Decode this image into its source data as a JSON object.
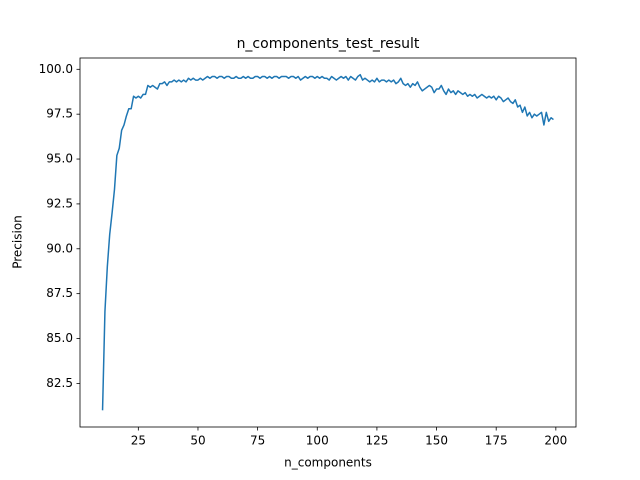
{
  "chart_data": {
    "type": "line",
    "title": "n_components_test_result",
    "x_label": "n_components",
    "y_label": "Precision",
    "x": [
      10,
      11,
      12,
      13,
      14,
      15,
      16,
      17,
      18,
      19,
      20,
      21,
      22,
      23,
      24,
      25,
      26,
      27,
      28,
      29,
      30,
      31,
      32,
      33,
      34,
      35,
      36,
      37,
      38,
      39,
      40,
      41,
      42,
      43,
      44,
      45,
      46,
      47,
      48,
      49,
      50,
      51,
      52,
      53,
      54,
      55,
      56,
      57,
      58,
      59,
      60,
      61,
      62,
      63,
      64,
      65,
      66,
      67,
      68,
      69,
      70,
      71,
      72,
      73,
      74,
      75,
      76,
      77,
      78,
      79,
      80,
      81,
      82,
      83,
      84,
      85,
      86,
      87,
      88,
      89,
      90,
      91,
      92,
      93,
      94,
      95,
      96,
      97,
      98,
      99,
      100,
      101,
      102,
      103,
      104,
      105,
      106,
      107,
      108,
      109,
      110,
      111,
      112,
      113,
      114,
      115,
      116,
      117,
      118,
      119,
      120,
      121,
      122,
      123,
      124,
      125,
      126,
      127,
      128,
      129,
      130,
      131,
      132,
      133,
      134,
      135,
      136,
      137,
      138,
      139,
      140,
      141,
      142,
      143,
      144,
      145,
      146,
      147,
      148,
      149,
      150,
      151,
      152,
      153,
      154,
      155,
      156,
      157,
      158,
      159,
      160,
      161,
      162,
      163,
      164,
      165,
      166,
      167,
      168,
      169,
      170,
      171,
      172,
      173,
      174,
      175,
      176,
      177,
      178,
      179,
      180,
      181,
      182,
      183,
      184,
      185,
      186,
      187,
      188,
      189,
      190,
      191,
      192,
      193,
      194,
      195,
      196,
      197,
      198,
      199
    ],
    "series": [
      {
        "name": "Precision",
        "color": "#1f77b4",
        "values": [
          81.0,
          86.5,
          89.0,
          90.8,
          92.0,
          93.3,
          95.2,
          95.6,
          96.6,
          96.9,
          97.4,
          97.8,
          97.8,
          98.5,
          98.4,
          98.5,
          98.4,
          98.6,
          98.6,
          99.1,
          99.0,
          99.1,
          99.0,
          98.9,
          99.2,
          99.2,
          99.3,
          99.1,
          99.3,
          99.3,
          99.4,
          99.3,
          99.4,
          99.3,
          99.4,
          99.3,
          99.5,
          99.4,
          99.5,
          99.4,
          99.4,
          99.5,
          99.4,
          99.5,
          99.6,
          99.5,
          99.6,
          99.6,
          99.5,
          99.6,
          99.6,
          99.5,
          99.6,
          99.6,
          99.5,
          99.5,
          99.6,
          99.5,
          99.5,
          99.6,
          99.5,
          99.6,
          99.5,
          99.5,
          99.6,
          99.6,
          99.5,
          99.6,
          99.6,
          99.5,
          99.6,
          99.5,
          99.6,
          99.6,
          99.5,
          99.6,
          99.6,
          99.6,
          99.5,
          99.6,
          99.6,
          99.5,
          99.6,
          99.4,
          99.5,
          99.6,
          99.5,
          99.6,
          99.6,
          99.5,
          99.6,
          99.5,
          99.6,
          99.5,
          99.5,
          99.4,
          99.6,
          99.5,
          99.4,
          99.5,
          99.6,
          99.5,
          99.6,
          99.4,
          99.6,
          99.5,
          99.4,
          99.6,
          99.7,
          99.4,
          99.5,
          99.4,
          99.3,
          99.4,
          99.3,
          99.5,
          99.3,
          99.4,
          99.4,
          99.3,
          99.4,
          99.3,
          99.4,
          99.2,
          99.3,
          99.5,
          99.2,
          99.1,
          99.2,
          99.0,
          99.2,
          99.1,
          99.3,
          99.0,
          98.8,
          98.9,
          99.0,
          99.1,
          99.0,
          98.7,
          98.9,
          98.9,
          99.1,
          98.8,
          98.6,
          98.9,
          98.7,
          98.8,
          98.6,
          98.8,
          98.7,
          98.6,
          98.7,
          98.5,
          98.6,
          98.5,
          98.6,
          98.4,
          98.5,
          98.6,
          98.5,
          98.4,
          98.5,
          98.4,
          98.5,
          98.3,
          98.5,
          98.4,
          98.2,
          98.3,
          98.4,
          98.2,
          98.1,
          98.3,
          97.9,
          98.0,
          97.6,
          97.9,
          97.4,
          97.6,
          97.3,
          97.5,
          97.4,
          97.5,
          97.6,
          96.9,
          97.6,
          97.1,
          97.3,
          97.2
        ]
      }
    ],
    "xlim": [
      0.55,
      208.45
    ],
    "ylim": [
      80.07,
      100.63
    ],
    "xticks": [
      25,
      50,
      75,
      100,
      125,
      150,
      175,
      200
    ],
    "yticks": [
      82.5,
      {
        "value": 85,
        "label": "85.0"
      },
      87.5,
      {
        "value": 90,
        "label": "90.0"
      },
      92.5,
      {
        "value": 95,
        "label": "95.0"
      },
      97.5,
      {
        "value": 100,
        "label": "100.0"
      }
    ],
    "grid": false
  }
}
